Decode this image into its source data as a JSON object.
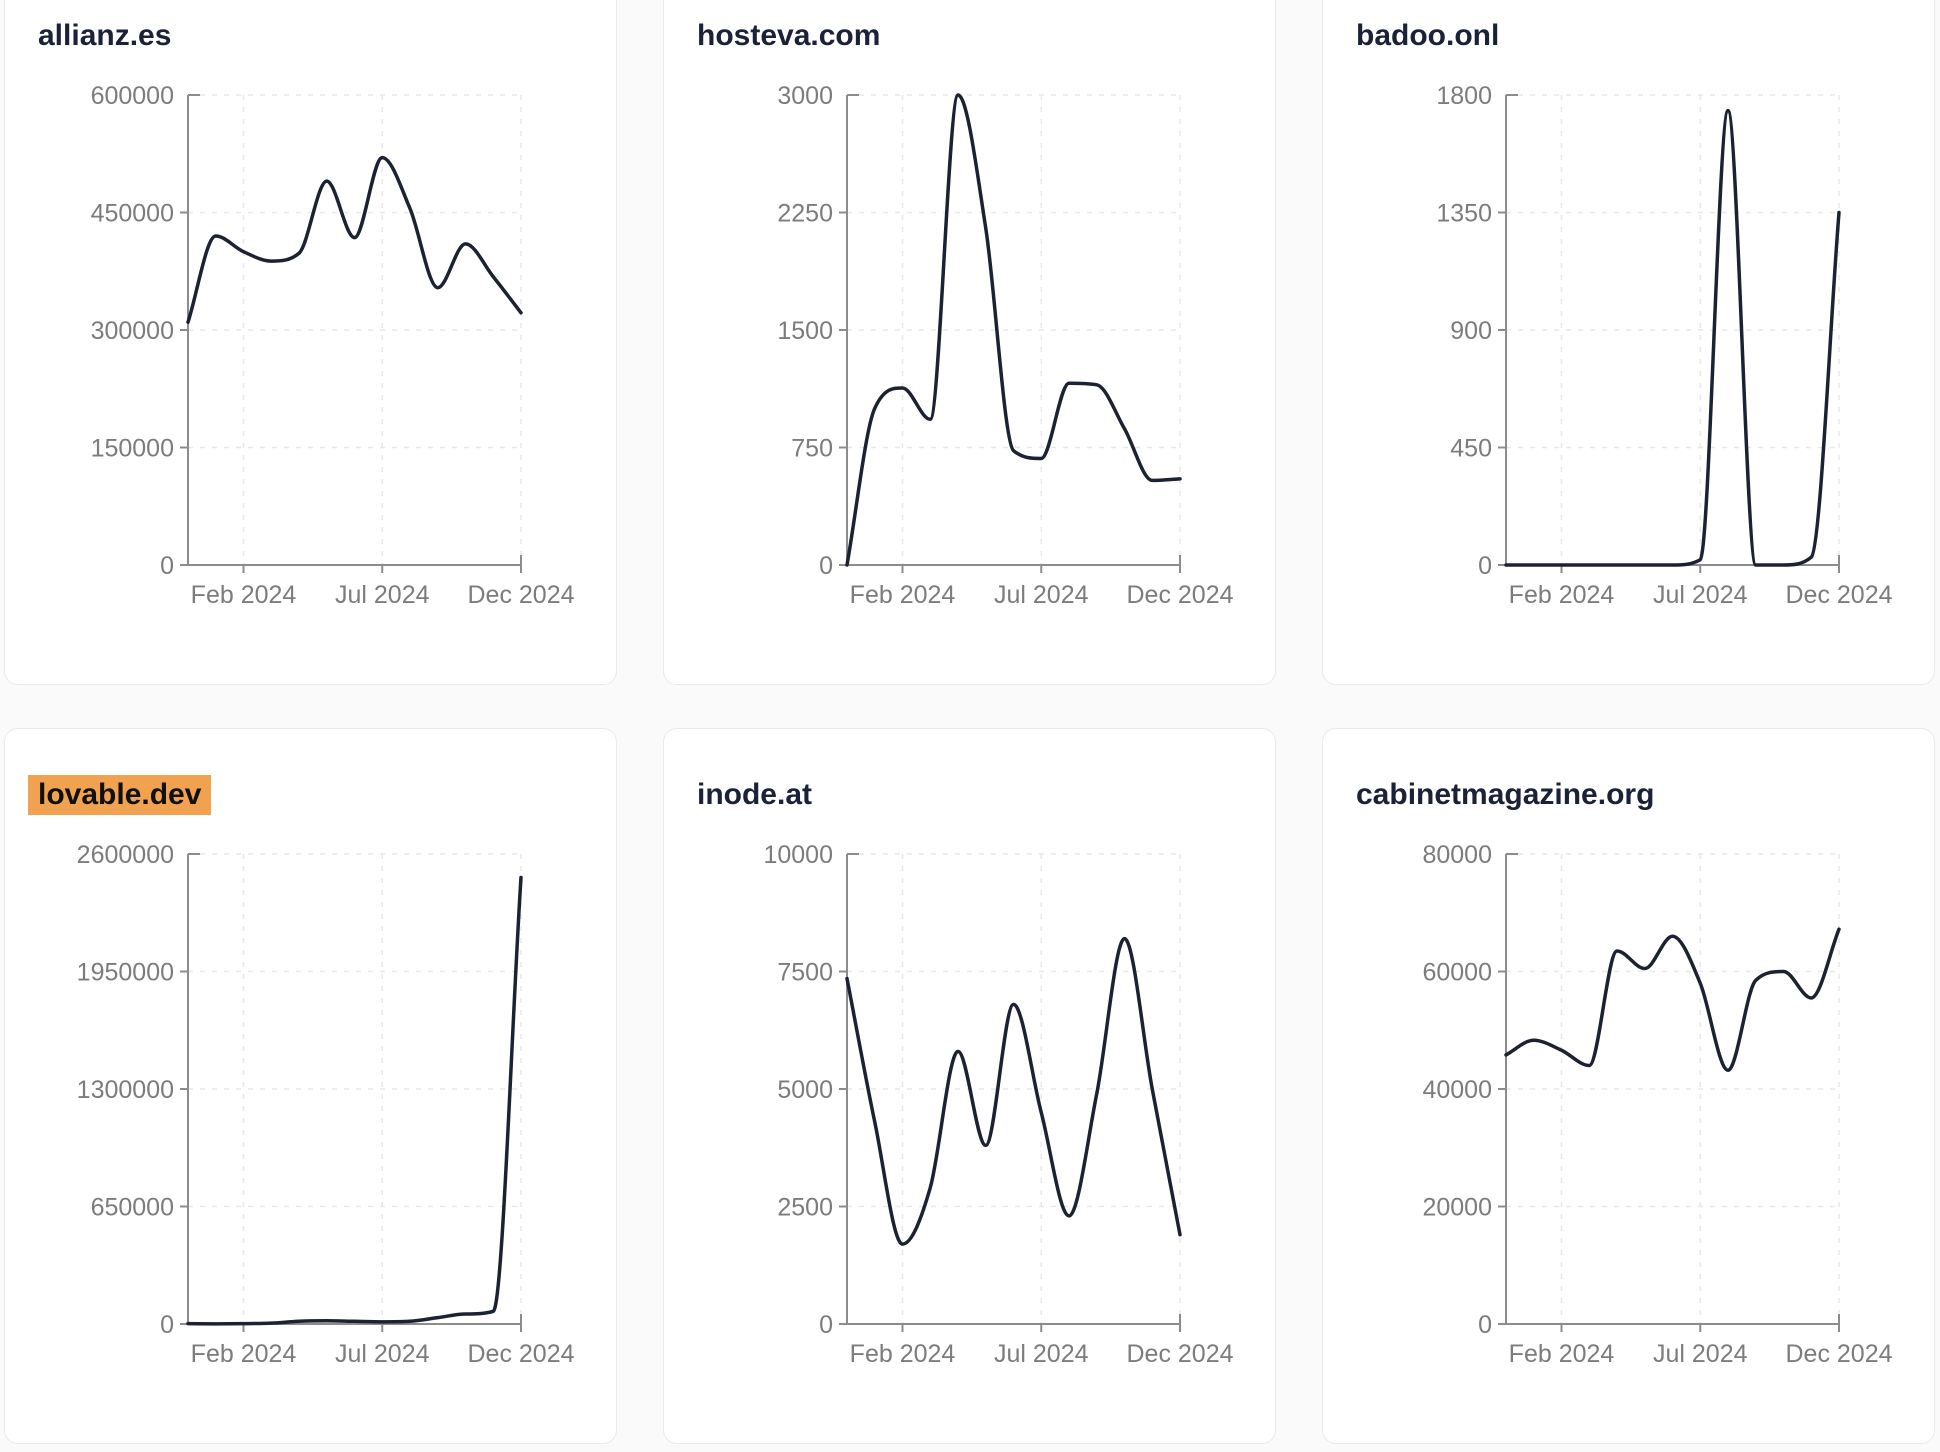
{
  "colors": {
    "page_bg": "#fafafa",
    "card_bg": "#ffffff",
    "card_border": "#e9e9ee",
    "title_text": "#1a2138",
    "highlight_bg": "#f1a251",
    "highlight_text": "#101010",
    "series_line": "#1c2233",
    "axis": "#8c8c8c",
    "grid": "#e8e8ec",
    "tick_label": "#7c7c7c"
  },
  "chart_data": [
    {
      "type": "line",
      "title": "allianz.es",
      "highlighted": false,
      "months": [
        "Dec 2023",
        "Jan 2024",
        "Feb 2024",
        "Mar 2024",
        "Apr 2024",
        "May 2024",
        "Jun 2024",
        "Jul 2024",
        "Aug 2024",
        "Sep 2024",
        "Oct 2024",
        "Nov 2024",
        "Dec 2024"
      ],
      "values": [
        310000,
        420000,
        400000,
        388000,
        398000,
        490000,
        418000,
        520000,
        455000,
        354000,
        410000,
        368000,
        322000
      ],
      "y_ticks": [
        0,
        150000,
        300000,
        450000,
        600000
      ],
      "ylim": [
        0,
        600000
      ],
      "x_tick_labels": [
        "Feb 2024",
        "Jul 2024",
        "Dec 2024"
      ],
      "x_tick_indices": [
        2,
        7,
        12
      ],
      "grid": "dashed",
      "legend": "none"
    },
    {
      "type": "line",
      "title": "hosteva.com",
      "highlighted": false,
      "months": [
        "Dec 2023",
        "Jan 2024",
        "Feb 2024",
        "Mar 2024",
        "Apr 2024",
        "May 2024",
        "Jun 2024",
        "Jul 2024",
        "Aug 2024",
        "Sep 2024",
        "Oct 2024",
        "Nov 2024",
        "Dec 2024"
      ],
      "values": [
        0,
        1000,
        1130,
        930,
        3000,
        2150,
        730,
        680,
        1160,
        1150,
        870,
        540,
        550
      ],
      "y_ticks": [
        0,
        750,
        1500,
        2250,
        3000
      ],
      "ylim": [
        0,
        3000
      ],
      "x_tick_labels": [
        "Feb 2024",
        "Jul 2024",
        "Dec 2024"
      ],
      "x_tick_indices": [
        2,
        7,
        12
      ],
      "grid": "dashed",
      "legend": "none"
    },
    {
      "type": "line",
      "title": "badoo.onl",
      "highlighted": false,
      "months": [
        "Dec 2023",
        "Jan 2024",
        "Feb 2024",
        "Mar 2024",
        "Apr 2024",
        "May 2024",
        "Jun 2024",
        "Jul 2024",
        "Aug 2024",
        "Sep 2024",
        "Oct 2024",
        "Nov 2024",
        "Dec 2024"
      ],
      "values": [
        0,
        0,
        0,
        0,
        0,
        0,
        0,
        20,
        1740,
        0,
        0,
        30,
        1350
      ],
      "y_ticks": [
        0,
        450,
        900,
        1350,
        1800
      ],
      "ylim": [
        0,
        1800
      ],
      "x_tick_labels": [
        "Feb 2024",
        "Jul 2024",
        "Dec 2024"
      ],
      "x_tick_indices": [
        2,
        7,
        12
      ],
      "grid": "dashed",
      "legend": "none"
    },
    {
      "type": "line",
      "title": "lovable.dev",
      "highlighted": true,
      "months": [
        "Dec 2023",
        "Jan 2024",
        "Feb 2024",
        "Mar 2024",
        "Apr 2024",
        "May 2024",
        "Jun 2024",
        "Jul 2024",
        "Aug 2024",
        "Sep 2024",
        "Oct 2024",
        "Nov 2024",
        "Dec 2024"
      ],
      "values": [
        2000,
        1000,
        2000,
        5000,
        15000,
        18000,
        15000,
        12000,
        15000,
        35000,
        55000,
        70000,
        2470000
      ],
      "y_ticks": [
        0,
        650000,
        1300000,
        1950000,
        2600000
      ],
      "ylim": [
        0,
        2600000
      ],
      "x_tick_labels": [
        "Feb 2024",
        "Jul 2024",
        "Dec 2024"
      ],
      "x_tick_indices": [
        2,
        7,
        12
      ],
      "grid": "dashed",
      "legend": "none"
    },
    {
      "type": "line",
      "title": "inode.at",
      "highlighted": false,
      "months": [
        "Dec 2023",
        "Jan 2024",
        "Feb 2024",
        "Mar 2024",
        "Apr 2024",
        "May 2024",
        "Jun 2024",
        "Jul 2024",
        "Aug 2024",
        "Sep 2024",
        "Oct 2024",
        "Nov 2024",
        "Dec 2024"
      ],
      "values": [
        7350,
        4300,
        1700,
        2900,
        5800,
        3800,
        6800,
        4500,
        2300,
        4900,
        8200,
        5000,
        1900
      ],
      "y_ticks": [
        0,
        2500,
        5000,
        7500,
        10000
      ],
      "ylim": [
        0,
        10000
      ],
      "x_tick_labels": [
        "Feb 2024",
        "Jul 2024",
        "Dec 2024"
      ],
      "x_tick_indices": [
        2,
        7,
        12
      ],
      "grid": "dashed",
      "legend": "none"
    },
    {
      "type": "line",
      "title": "cabinetmagazine.org",
      "highlighted": false,
      "months": [
        "Dec 2023",
        "Jan 2024",
        "Feb 2024",
        "Mar 2024",
        "Apr 2024",
        "May 2024",
        "Jun 2024",
        "Jul 2024",
        "Aug 2024",
        "Sep 2024",
        "Oct 2024",
        "Nov 2024",
        "Dec 2024"
      ],
      "values": [
        45800,
        48300,
        46600,
        44000,
        63500,
        60500,
        66000,
        58000,
        43200,
        58500,
        60000,
        55500,
        67200
      ],
      "y_ticks": [
        0,
        20000,
        40000,
        60000,
        80000
      ],
      "ylim": [
        0,
        80000
      ],
      "x_tick_labels": [
        "Feb 2024",
        "Jul 2024",
        "Dec 2024"
      ],
      "x_tick_indices": [
        2,
        7,
        12
      ],
      "grid": "dashed",
      "legend": "none"
    }
  ]
}
